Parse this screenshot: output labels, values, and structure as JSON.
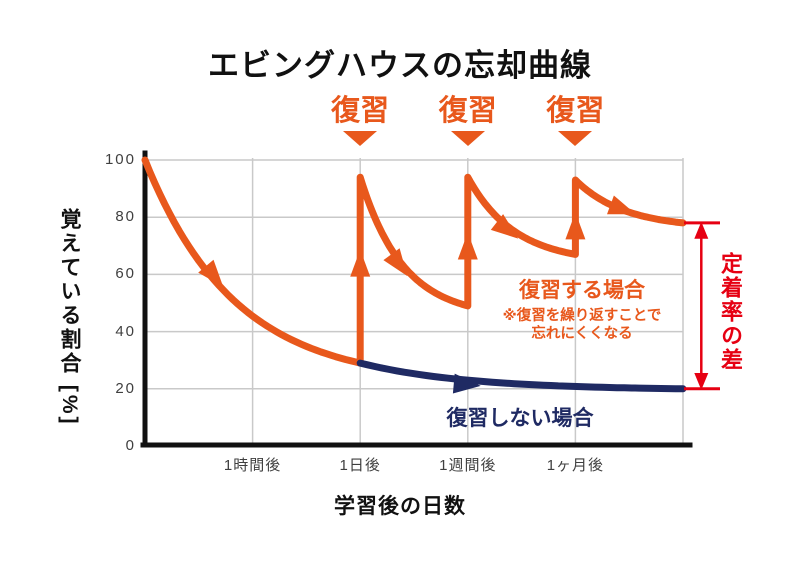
{
  "title": "エビングハウスの忘却曲線",
  "colors": {
    "orange": "#E8581C",
    "navy": "#1F2A63",
    "red": "#E60012",
    "grid": "#C9C9C9",
    "axis": "#111111",
    "tick_text": "#3F3F3F"
  },
  "review": {
    "label": "復習",
    "positions": [
      2,
      3,
      4
    ]
  },
  "annotations": {
    "with_review": {
      "title": "復習する場合",
      "note_line1": "※復習を繰り返すことで",
      "note_line2": "忘れにくくなる"
    },
    "without_review": {
      "title": "復習しない場合"
    },
    "retention_gap": {
      "label": "定着率の差",
      "x": 5.17,
      "top_value": 78,
      "bottom_value": 20
    }
  },
  "chart_data": {
    "type": "line",
    "title": "エビングハウスの忘却曲線",
    "xlabel": "学習後の日数",
    "ylabel": "覚えている割合 [%]",
    "ylim": [
      0,
      100
    ],
    "y_ticks": [
      100,
      80,
      60,
      40,
      20,
      0
    ],
    "x_ticks": [
      {
        "x": 1,
        "label": "1時間後"
      },
      {
        "x": 2,
        "label": "1日後"
      },
      {
        "x": 3,
        "label": "1週間後"
      },
      {
        "x": 4,
        "label": "1ヶ月後"
      }
    ],
    "x_unit_note": "x = tick index: 0=学習直後, 1=1時間後, 2=1日後, 3=1週間後, 4=1ヶ月後, 5=右端",
    "grid": true,
    "legend_position": "none",
    "series": [
      {
        "name": "復習する場合",
        "color_key": "orange",
        "stroke_width": 7,
        "segments": [
          {
            "kind": "decay",
            "x0": 0,
            "x1": 2,
            "y0": 100,
            "y1": 29,
            "bend": 2.4
          },
          {
            "kind": "jump",
            "x": 2,
            "y0": 29,
            "y1": 94
          },
          {
            "kind": "decay",
            "x0": 2,
            "x1": 3,
            "y0": 94,
            "y1": 49,
            "bend": 2.5
          },
          {
            "kind": "jump",
            "x": 3,
            "y0": 49,
            "y1": 94
          },
          {
            "kind": "decay",
            "x0": 3,
            "x1": 4,
            "y0": 94,
            "y1": 67,
            "bend": 2.3
          },
          {
            "kind": "jump",
            "x": 4,
            "y0": 67,
            "y1": 93
          },
          {
            "kind": "decay",
            "x0": 4,
            "x1": 5,
            "y0": 93,
            "y1": 78,
            "bend": 2.2
          }
        ],
        "key_points": [
          [
            0,
            100
          ],
          [
            1,
            46
          ],
          [
            2,
            29
          ],
          [
            2,
            94
          ],
          [
            3,
            49
          ],
          [
            3,
            94
          ],
          [
            4,
            67
          ],
          [
            4,
            93
          ],
          [
            5,
            78
          ]
        ],
        "arrows": [
          {
            "x": 0.63,
            "y": 60,
            "angle": 50
          },
          {
            "x": 2,
            "y": 63,
            "angle": -90
          },
          {
            "x": 2.35,
            "y": 64,
            "angle": 54
          },
          {
            "x": 3,
            "y": 69,
            "angle": -90
          },
          {
            "x": 3.35,
            "y": 76,
            "angle": 38
          },
          {
            "x": 4,
            "y": 76,
            "angle": -90
          },
          {
            "x": 4.42,
            "y": 83,
            "angle": 20
          }
        ]
      },
      {
        "name": "復習しない場合",
        "color_key": "navy",
        "stroke_width": 7,
        "segments": [
          {
            "kind": "decay",
            "x0": 2,
            "x1": 5,
            "y0": 29,
            "y1": 20,
            "bend": 3.0
          }
        ],
        "key_points": [
          [
            2,
            29
          ],
          [
            3,
            23
          ],
          [
            4,
            21
          ],
          [
            5,
            20
          ]
        ],
        "arrows": [
          {
            "x": 2.97,
            "y": 21.5,
            "angle": 5
          }
        ]
      }
    ]
  }
}
